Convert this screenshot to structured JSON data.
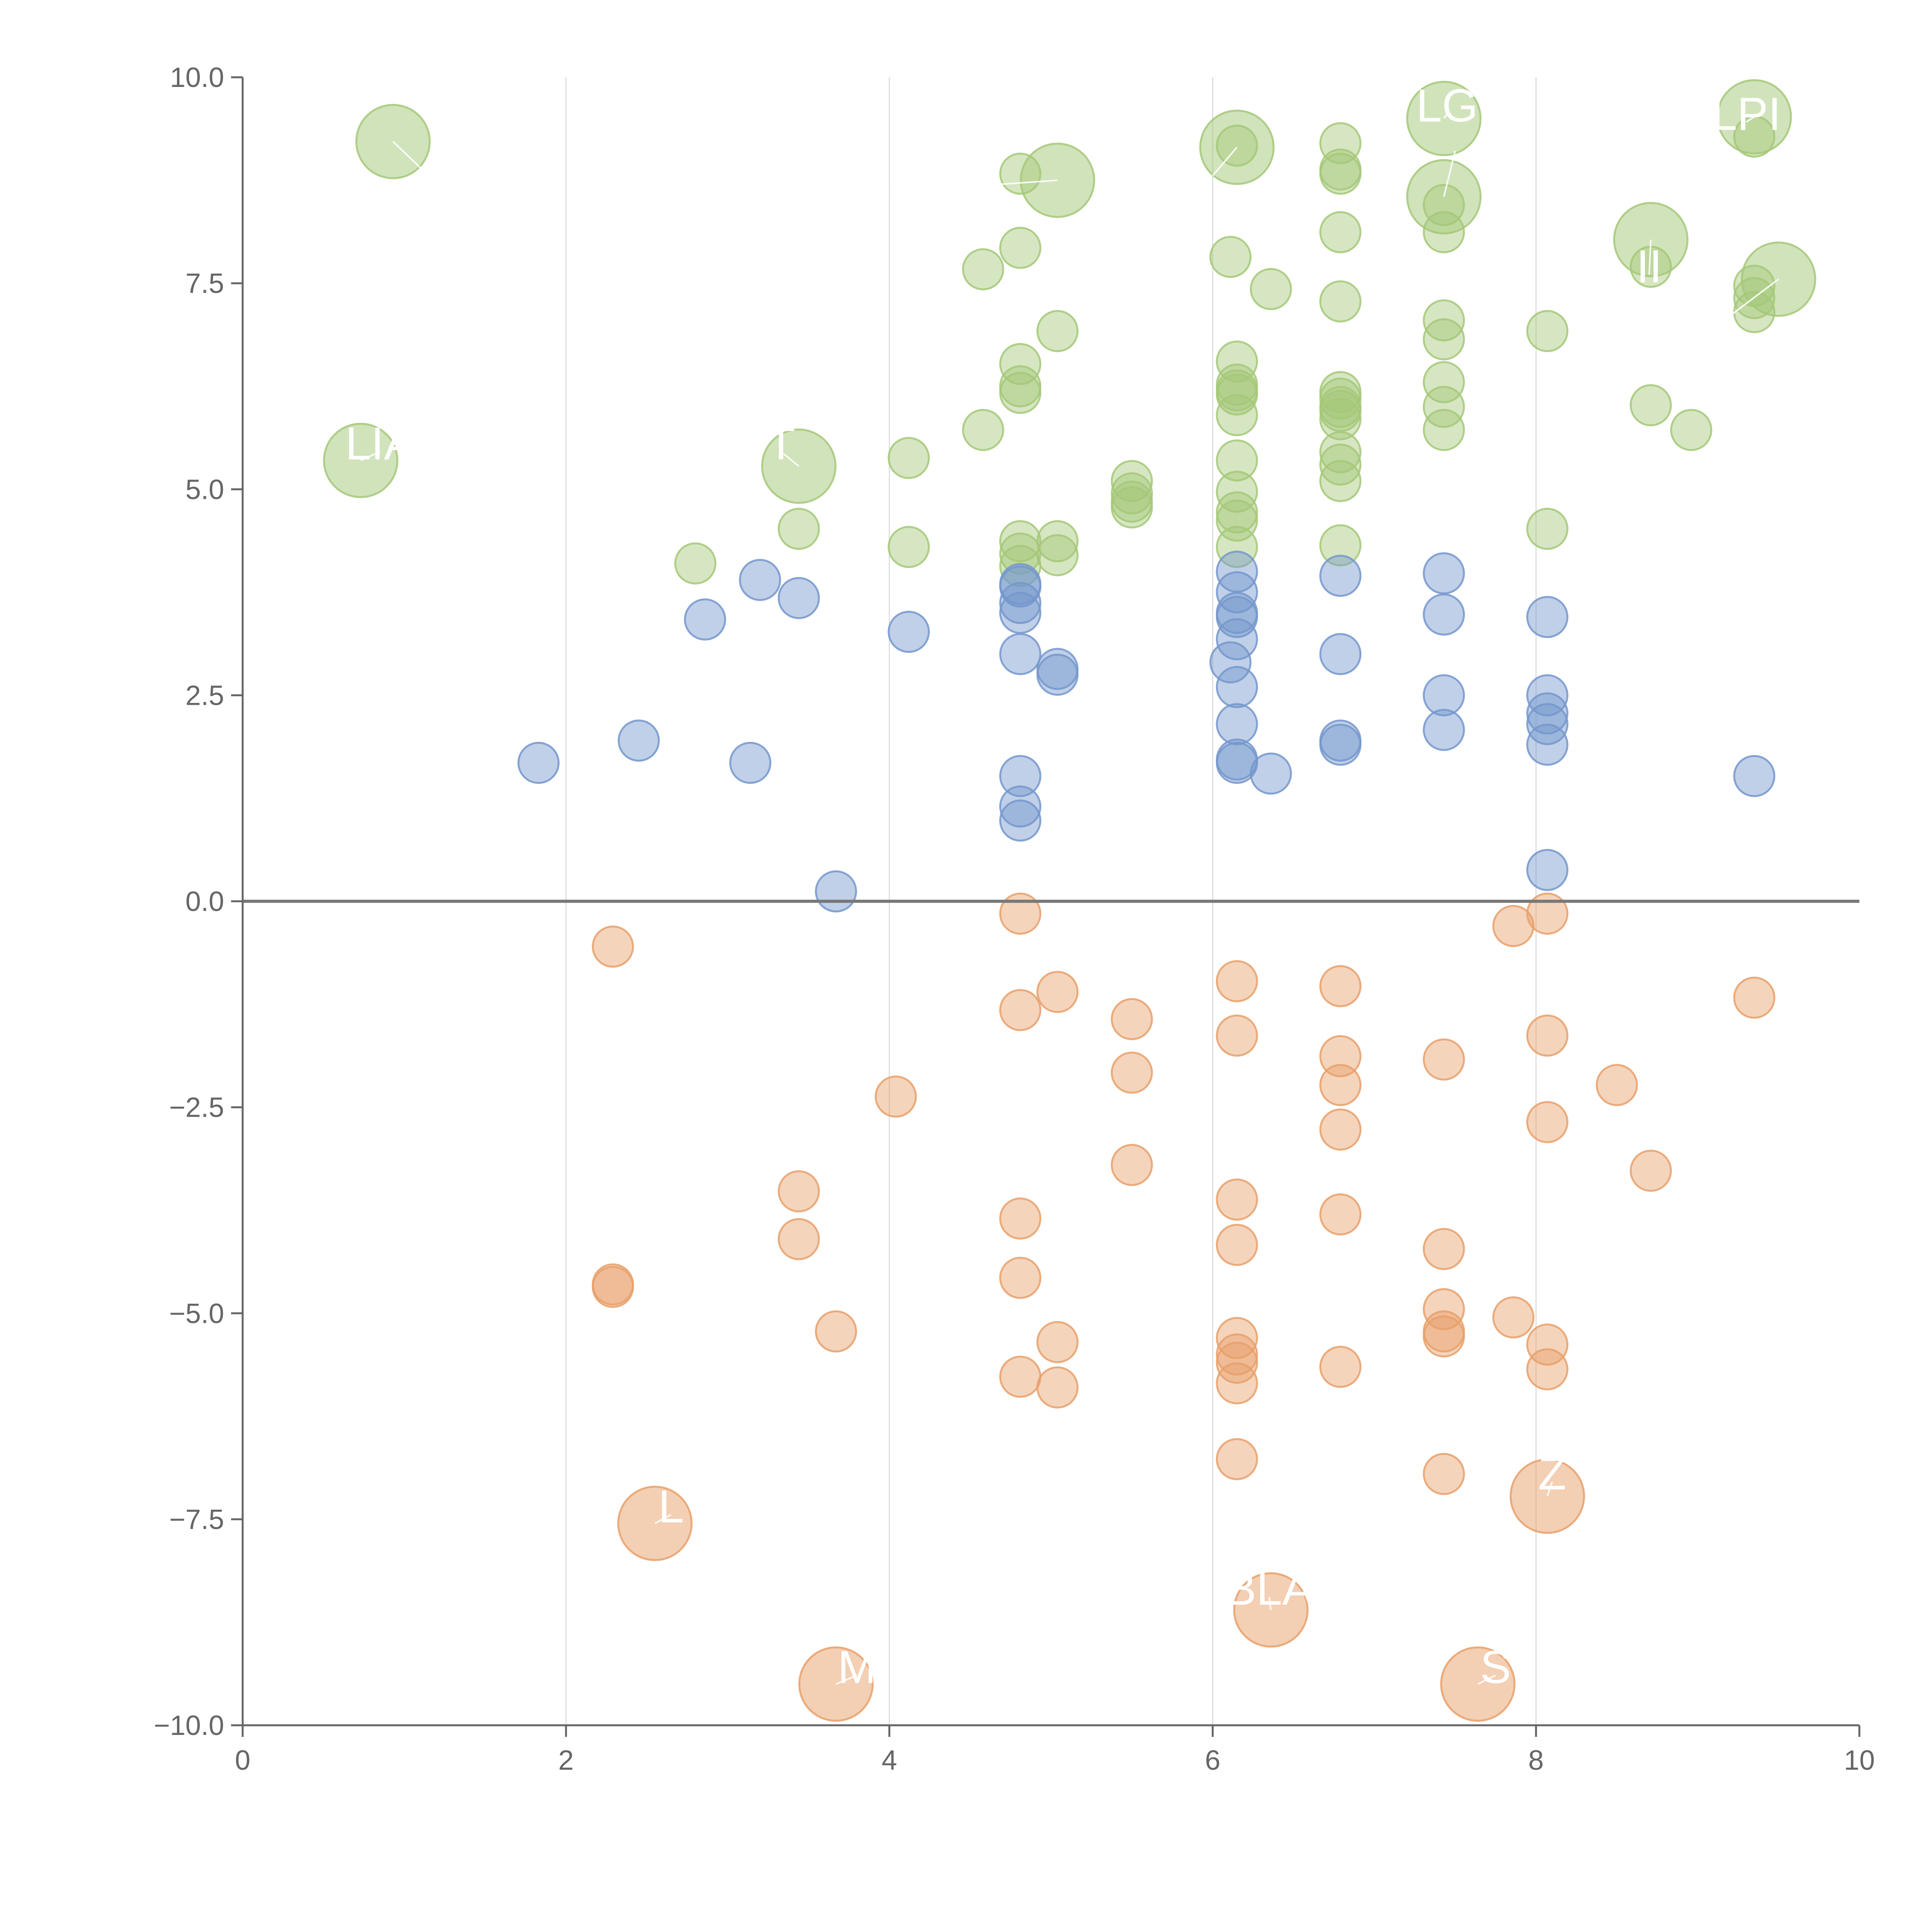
{
  "chart_data": {
    "type": "scatter",
    "title": "",
    "xlabel": "",
    "ylabel": "",
    "xlim": [
      0,
      10
    ],
    "ylim": [
      -10,
      10
    ],
    "xticks": [
      "0",
      "2",
      "4",
      "6",
      "8",
      "10"
    ],
    "yticks": [
      "10.0",
      "7.5",
      "5.0",
      "2.5",
      "0.0",
      "−2.5",
      "−5.0",
      "−7.5",
      "−10.0"
    ],
    "xtick_values": [
      0,
      2,
      4,
      6,
      8,
      10
    ],
    "ytick_values": [
      10,
      7.5,
      5,
      2.5,
      0,
      -2.5,
      -5,
      -7.5,
      -10
    ],
    "vertical_grid_x": [
      2,
      4,
      6,
      8
    ],
    "baseline_y": 0,
    "colors": {
      "green": "#a4c878",
      "blue": "#7496cc",
      "orange": "#e8a06a",
      "axis": "#666666",
      "grid": "#dddddd",
      "annotation": "#ffffff"
    },
    "series": [
      {
        "name": "green",
        "color": "#a4c878",
        "points": [
          [
            2.8,
            4.1
          ],
          [
            3.44,
            4.52
          ],
          [
            4.12,
            5.38
          ],
          [
            4.12,
            4.3
          ],
          [
            4.58,
            5.72
          ],
          [
            4.58,
            7.67
          ],
          [
            4.81,
            8.83
          ],
          [
            4.81,
            7.93
          ],
          [
            4.81,
            6.52
          ],
          [
            4.81,
            6.25
          ],
          [
            4.81,
            6.17
          ],
          [
            4.81,
            4.37
          ],
          [
            4.81,
            4.22
          ],
          [
            4.81,
            4.07
          ],
          [
            5.04,
            6.92
          ],
          [
            5.04,
            4.37
          ],
          [
            5.04,
            4.2
          ],
          [
            5.5,
            5.1
          ],
          [
            5.5,
            4.95
          ],
          [
            5.5,
            4.85
          ],
          [
            5.5,
            4.78
          ],
          [
            6.11,
            7.82
          ],
          [
            6.15,
            9.17
          ],
          [
            6.15,
            6.55
          ],
          [
            6.15,
            6.27
          ],
          [
            6.15,
            6.2
          ],
          [
            6.15,
            6.15
          ],
          [
            6.15,
            5.9
          ],
          [
            6.15,
            5.35
          ],
          [
            6.15,
            4.97
          ],
          [
            6.15,
            4.72
          ],
          [
            6.15,
            4.62
          ],
          [
            6.15,
            4.3
          ],
          [
            6.36,
            7.43
          ],
          [
            6.79,
            9.2
          ],
          [
            6.79,
            8.88
          ],
          [
            6.79,
            8.83
          ],
          [
            6.79,
            8.12
          ],
          [
            6.79,
            7.28
          ],
          [
            6.79,
            6.18
          ],
          [
            6.79,
            6.1
          ],
          [
            6.79,
            6.0
          ],
          [
            6.79,
            5.95
          ],
          [
            6.79,
            5.85
          ],
          [
            6.79,
            5.45
          ],
          [
            6.79,
            5.3
          ],
          [
            6.79,
            5.1
          ],
          [
            6.79,
            4.32
          ],
          [
            7.43,
            8.45
          ],
          [
            7.43,
            8.12
          ],
          [
            7.43,
            7.05
          ],
          [
            7.43,
            6.82
          ],
          [
            7.43,
            6.3
          ],
          [
            7.43,
            6.0
          ],
          [
            7.43,
            5.72
          ],
          [
            8.07,
            6.92
          ],
          [
            8.07,
            4.52
          ],
          [
            8.71,
            7.7
          ],
          [
            8.71,
            6.02
          ],
          [
            8.96,
            5.72
          ],
          [
            9.35,
            9.28
          ],
          [
            9.35,
            7.47
          ],
          [
            9.35,
            7.32
          ],
          [
            9.35,
            7.15
          ]
        ]
      },
      {
        "name": "blue",
        "color": "#7496cc",
        "points": [
          [
            1.83,
            1.68
          ],
          [
            2.45,
            1.95
          ],
          [
            2.86,
            3.42
          ],
          [
            3.14,
            1.68
          ],
          [
            3.2,
            3.9
          ],
          [
            3.44,
            3.68
          ],
          [
            3.67,
            0.12
          ],
          [
            4.12,
            3.27
          ],
          [
            4.81,
            3.85
          ],
          [
            4.81,
            3.82
          ],
          [
            4.81,
            3.62
          ],
          [
            4.81,
            3.5
          ],
          [
            4.81,
            3.0
          ],
          [
            4.81,
            1.52
          ],
          [
            4.81,
            1.15
          ],
          [
            4.81,
            0.98
          ],
          [
            5.04,
            2.82
          ],
          [
            5.04,
            2.75
          ],
          [
            6.15,
            4.0
          ],
          [
            6.15,
            3.75
          ],
          [
            6.15,
            3.5
          ],
          [
            6.15,
            3.45
          ],
          [
            6.15,
            3.18
          ],
          [
            6.15,
            2.6
          ],
          [
            6.15,
            2.15
          ],
          [
            6.15,
            1.72
          ],
          [
            6.15,
            1.68
          ],
          [
            6.11,
            2.9
          ],
          [
            6.36,
            1.55
          ],
          [
            6.79,
            3.95
          ],
          [
            6.79,
            3.0
          ],
          [
            6.79,
            1.95
          ],
          [
            6.79,
            1.9
          ],
          [
            7.43,
            3.98
          ],
          [
            7.43,
            3.48
          ],
          [
            7.43,
            2.5
          ],
          [
            7.43,
            2.08
          ],
          [
            8.07,
            3.45
          ],
          [
            8.07,
            2.5
          ],
          [
            8.07,
            2.28
          ],
          [
            8.07,
            2.15
          ],
          [
            8.07,
            1.9
          ],
          [
            8.07,
            0.38
          ],
          [
            9.35,
            1.52
          ]
        ]
      },
      {
        "name": "orange",
        "color": "#e8a06a",
        "points": [
          [
            2.29,
            -0.55
          ],
          [
            2.29,
            -4.65
          ],
          [
            2.29,
            -4.68
          ],
          [
            3.44,
            -3.52
          ],
          [
            3.44,
            -4.1
          ],
          [
            3.67,
            -5.22
          ],
          [
            4.04,
            -2.37
          ],
          [
            4.81,
            -0.15
          ],
          [
            4.81,
            -1.32
          ],
          [
            4.81,
            -3.85
          ],
          [
            4.81,
            -4.57
          ],
          [
            4.81,
            -5.77
          ],
          [
            5.04,
            -1.1
          ],
          [
            5.04,
            -5.35
          ],
          [
            5.04,
            -5.9
          ],
          [
            5.5,
            -1.43
          ],
          [
            5.5,
            -2.08
          ],
          [
            5.5,
            -3.2
          ],
          [
            6.15,
            -0.97
          ],
          [
            6.15,
            -1.63
          ],
          [
            6.15,
            -3.62
          ],
          [
            6.15,
            -4.17
          ],
          [
            6.15,
            -5.3
          ],
          [
            6.15,
            -5.5
          ],
          [
            6.15,
            -5.6
          ],
          [
            6.15,
            -5.85
          ],
          [
            6.15,
            -6.77
          ],
          [
            6.79,
            -1.03
          ],
          [
            6.79,
            -1.88
          ],
          [
            6.79,
            -2.23
          ],
          [
            6.79,
            -2.77
          ],
          [
            6.79,
            -3.8
          ],
          [
            6.79,
            -5.65
          ],
          [
            7.43,
            -1.92
          ],
          [
            7.43,
            -4.22
          ],
          [
            7.43,
            -4.95
          ],
          [
            7.43,
            -5.22
          ],
          [
            7.43,
            -5.28
          ],
          [
            7.43,
            -6.95
          ],
          [
            7.86,
            -0.3
          ],
          [
            7.86,
            -5.05
          ],
          [
            8.07,
            -0.15
          ],
          [
            8.07,
            -1.63
          ],
          [
            8.07,
            -2.68
          ],
          [
            8.07,
            -5.38
          ],
          [
            8.07,
            -5.68
          ],
          [
            8.5,
            -2.23
          ],
          [
            8.71,
            -3.27
          ],
          [
            9.35,
            -1.17
          ]
        ]
      }
    ],
    "annotations": [
      {
        "label": "",
        "series": "green",
        "x": 0.93,
        "y": 9.22,
        "size": "large",
        "text_x": 1.15,
        "text_y": 8.9,
        "anchor": "start"
      },
      {
        "label": "LIA",
        "series": "green",
        "x": 0.73,
        "y": 5.35,
        "size": "large",
        "text_x": 0.85,
        "text_y": 5.55,
        "anchor": "middle"
      },
      {
        "label": "T",
        "series": "green",
        "x": 3.44,
        "y": 5.28,
        "size": "large",
        "text_x": 3.33,
        "text_y": 5.55,
        "anchor": "middle"
      },
      {
        "label": "",
        "series": "green",
        "x": 5.04,
        "y": 8.75,
        "size": "large",
        "text_x": 4.0,
        "text_y": 8.7,
        "anchor": "middle"
      },
      {
        "label": "",
        "series": "green",
        "x": 6.15,
        "y": 9.15,
        "size": "large",
        "text_x": 6.0,
        "text_y": 8.9,
        "anchor": "middle"
      },
      {
        "label": "LG",
        "series": "green",
        "x": 7.43,
        "y": 9.5,
        "size": "large",
        "text_x": 7.45,
        "text_y": 9.65,
        "anchor": "middle"
      },
      {
        "label": "",
        "series": "green",
        "x": 7.43,
        "y": 8.55,
        "size": "large",
        "text_x": 7.5,
        "text_y": 9.2,
        "anchor": "middle"
      },
      {
        "label": "LPI",
        "series": "green",
        "x": 9.35,
        "y": 9.52,
        "size": "large",
        "text_x": 9.3,
        "text_y": 9.55,
        "anchor": "middle"
      },
      {
        "label": "II",
        "series": "green",
        "x": 8.71,
        "y": 8.03,
        "size": "large",
        "text_x": 8.7,
        "text_y": 7.7,
        "anchor": "middle"
      },
      {
        "label": "",
        "series": "green",
        "x": 9.5,
        "y": 7.55,
        "size": "large",
        "text_x": 9.2,
        "text_y": 7.2,
        "anchor": "middle"
      },
      {
        "label": "L",
        "series": "orange",
        "x": 2.55,
        "y": -7.55,
        "size": "large",
        "text_x": 2.65,
        "text_y": -7.35,
        "anchor": "middle"
      },
      {
        "label": "M",
        "series": "orange",
        "x": 3.67,
        "y": -9.5,
        "size": "large",
        "text_x": 3.8,
        "text_y": -9.3,
        "anchor": "middle"
      },
      {
        "label": "BLA",
        "series": "orange",
        "x": 6.36,
        "y": -8.6,
        "size": "large",
        "text_x": 6.35,
        "text_y": -8.35,
        "anchor": "middle"
      },
      {
        "label": "S",
        "series": "orange",
        "x": 7.64,
        "y": -9.5,
        "size": "large",
        "text_x": 7.75,
        "text_y": -9.3,
        "anchor": "middle"
      },
      {
        "label": "Z",
        "series": "orange",
        "x": 8.07,
        "y": -7.22,
        "size": "large",
        "text_x": 8.1,
        "text_y": -6.95,
        "anchor": "middle"
      }
    ]
  }
}
